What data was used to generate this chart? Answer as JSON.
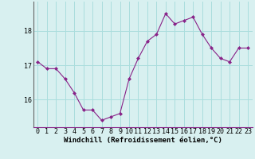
{
  "x": [
    0,
    1,
    2,
    3,
    4,
    5,
    6,
    7,
    8,
    9,
    10,
    11,
    12,
    13,
    14,
    15,
    16,
    17,
    18,
    19,
    20,
    21,
    22,
    23
  ],
  "y": [
    17.1,
    16.9,
    16.9,
    16.6,
    16.2,
    15.7,
    15.7,
    15.4,
    15.5,
    15.6,
    16.6,
    17.2,
    17.7,
    17.9,
    18.5,
    18.2,
    18.3,
    18.4,
    17.9,
    17.5,
    17.2,
    17.1,
    17.5,
    17.5
  ],
  "line_color": "#882288",
  "marker": "D",
  "marker_size": 2.0,
  "bg_color": "#d8f0f0",
  "grid_color": "#aadddd",
  "xlabel": "Windchill (Refroidissement éolien,°C)",
  "xlabel_fontsize": 6.5,
  "xtick_labels": [
    "0",
    "1",
    "2",
    "3",
    "4",
    "5",
    "6",
    "7",
    "8",
    "9",
    "10",
    "11",
    "12",
    "13",
    "14",
    "15",
    "16",
    "17",
    "18",
    "19",
    "20",
    "21",
    "22",
    "23"
  ],
  "ytick_values": [
    16,
    17,
    18
  ],
  "ylim": [
    15.2,
    18.85
  ],
  "xlim": [
    -0.5,
    23.5
  ],
  "tick_fontsize": 6.0,
  "left_spine_color": "#666666",
  "linewidth": 0.8
}
